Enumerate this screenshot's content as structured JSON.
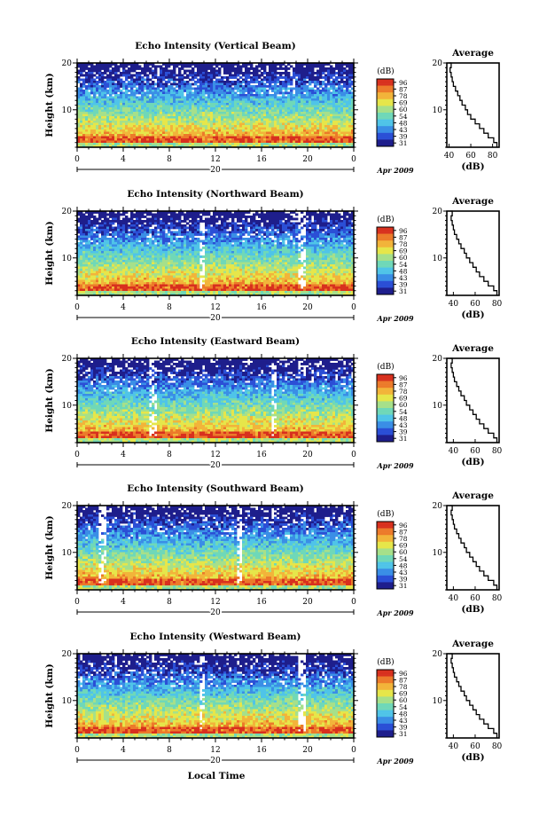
{
  "figure": {
    "xlabel": "Local Time",
    "date_label": "Apr 2009",
    "day_label": "20",
    "colorbar_title": "(dB)",
    "colorbar_ticks": [
      "96",
      "87",
      "78",
      "69",
      "60",
      "54",
      "48",
      "43",
      "39",
      "31"
    ],
    "colors": {
      "scale": [
        "#1e1e8c",
        "#2b4fd6",
        "#3a8ee6",
        "#4fc4e8",
        "#6fd8b8",
        "#a6e08a",
        "#e6e64a",
        "#f2b43a",
        "#ec7a2a",
        "#d8301e"
      ]
    }
  },
  "chart_data": [
    {
      "type": "heatmap",
      "title": "Echo Intensity (Vertical Beam)",
      "ylabel": "Height (km)",
      "xlim": [
        0,
        24
      ],
      "ylim": [
        2,
        20
      ],
      "x_ticks": [
        "0",
        "4",
        "8",
        "12",
        "16",
        "20",
        "0"
      ],
      "y_ticks": [
        "10",
        "20"
      ],
      "profile": {
        "title": "Average",
        "xlabel": "(dB)",
        "xlim": [
          38,
          86
        ],
        "x_ticks": [
          "40",
          "60",
          "80"
        ],
        "y_ticks": [
          "10",
          "20"
        ],
        "height": [
          2,
          3,
          4,
          5,
          6,
          7,
          8,
          9,
          10,
          11,
          12,
          13,
          14,
          15,
          16,
          17,
          18,
          19,
          20
        ],
        "db": [
          84,
          81,
          76,
          72,
          68,
          64,
          60,
          57,
          55,
          52,
          50,
          48,
          46,
          44,
          43,
          42,
          41,
          42,
          40
        ]
      }
    },
    {
      "type": "heatmap",
      "title": "Echo Intensity (Northward Beam)",
      "ylabel": "Height (km)",
      "xlim": [
        0,
        24
      ],
      "ylim": [
        2,
        20
      ],
      "x_ticks": [
        "0",
        "4",
        "8",
        "12",
        "16",
        "20",
        "0"
      ],
      "y_ticks": [
        "10",
        "20"
      ],
      "profile": {
        "title": "Average",
        "xlabel": "(dB)",
        "xlim": [
          34,
          82
        ],
        "x_ticks": [
          "40",
          "60",
          "80"
        ],
        "y_ticks": [
          "10",
          "20"
        ],
        "height": [
          2,
          3,
          4,
          5,
          6,
          7,
          8,
          9,
          10,
          11,
          12,
          13,
          14,
          15,
          16,
          17,
          18,
          19,
          20
        ],
        "db": [
          80,
          77,
          72,
          68,
          64,
          61,
          58,
          55,
          52,
          50,
          47,
          45,
          43,
          41,
          40,
          39,
          38,
          39,
          37
        ]
      }
    },
    {
      "type": "heatmap",
      "title": "Echo Intensity (Eastward Beam)",
      "ylabel": "Height (km)",
      "xlim": [
        0,
        24
      ],
      "ylim": [
        2,
        20
      ],
      "x_ticks": [
        "0",
        "4",
        "8",
        "12",
        "16",
        "20",
        "0"
      ],
      "y_ticks": [
        "10",
        "20"
      ],
      "profile": {
        "title": "Average",
        "xlabel": "(dB)",
        "xlim": [
          34,
          82
        ],
        "x_ticks": [
          "40",
          "60",
          "80"
        ],
        "y_ticks": [
          "10",
          "20"
        ],
        "height": [
          2,
          3,
          4,
          5,
          6,
          7,
          8,
          9,
          10,
          11,
          12,
          13,
          14,
          15,
          16,
          17,
          18,
          19,
          20
        ],
        "db": [
          80,
          77,
          72,
          68,
          64,
          61,
          58,
          55,
          52,
          50,
          47,
          45,
          43,
          41,
          40,
          39,
          38,
          39,
          37
        ]
      }
    },
    {
      "type": "heatmap",
      "title": "Echo Intensity (Southward Beam)",
      "ylabel": "Height (km)",
      "xlim": [
        0,
        24
      ],
      "ylim": [
        2,
        20
      ],
      "x_ticks": [
        "0",
        "4",
        "8",
        "12",
        "16",
        "20",
        "0"
      ],
      "y_ticks": [
        "10",
        "20"
      ],
      "profile": {
        "title": "Average",
        "xlabel": "(dB)",
        "xlim": [
          34,
          82
        ],
        "x_ticks": [
          "40",
          "60",
          "80"
        ],
        "y_ticks": [
          "10",
          "20"
        ],
        "height": [
          2,
          3,
          4,
          5,
          6,
          7,
          8,
          9,
          10,
          11,
          12,
          13,
          14,
          15,
          16,
          17,
          18,
          19,
          20
        ],
        "db": [
          80,
          77,
          72,
          68,
          64,
          61,
          58,
          55,
          52,
          50,
          47,
          45,
          43,
          41,
          40,
          39,
          38,
          39,
          37
        ]
      }
    },
    {
      "type": "heatmap",
      "title": "Echo Intensity (Westward Beam)",
      "ylabel": "Height (km)",
      "xlim": [
        0,
        24
      ],
      "ylim": [
        2,
        20
      ],
      "x_ticks": [
        "0",
        "4",
        "8",
        "12",
        "16",
        "20",
        "0"
      ],
      "y_ticks": [
        "10",
        "20"
      ],
      "profile": {
        "title": "Average",
        "xlabel": "(dB)",
        "xlim": [
          34,
          82
        ],
        "x_ticks": [
          "40",
          "60",
          "80"
        ],
        "y_ticks": [
          "10",
          "20"
        ],
        "height": [
          2,
          3,
          4,
          5,
          6,
          7,
          8,
          9,
          10,
          11,
          12,
          13,
          14,
          15,
          16,
          17,
          18,
          19,
          20
        ],
        "db": [
          80,
          77,
          72,
          68,
          64,
          61,
          58,
          55,
          52,
          50,
          47,
          45,
          43,
          41,
          40,
          39,
          38,
          39,
          37
        ]
      }
    }
  ]
}
